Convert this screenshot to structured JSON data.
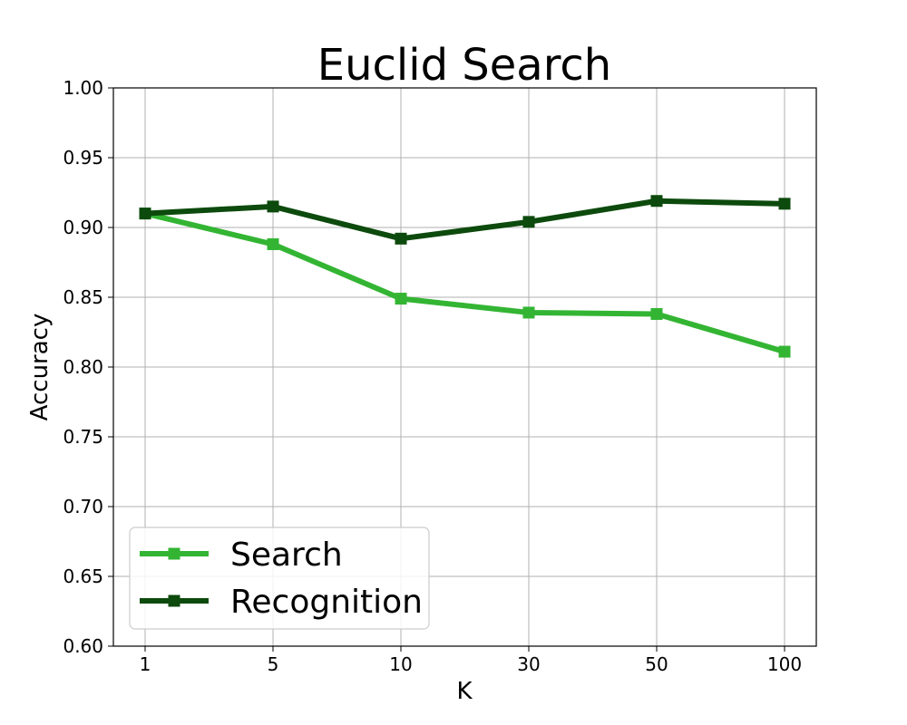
{
  "chart_data": {
    "type": "line",
    "title": "Euclid Search",
    "xlabel": "K",
    "ylabel": "Accuracy",
    "categories": [
      "1",
      "5",
      "10",
      "30",
      "50",
      "100"
    ],
    "ylim": [
      0.6,
      1.0
    ],
    "yticks": [
      "0.60",
      "0.65",
      "0.70",
      "0.75",
      "0.80",
      "0.85",
      "0.90",
      "0.95",
      "1.00"
    ],
    "grid": true,
    "legend_position": "lower-left",
    "series": [
      {
        "name": "Search",
        "color": "#33b533",
        "marker": "square",
        "values": [
          0.91,
          0.888,
          0.849,
          0.839,
          0.838,
          0.811
        ]
      },
      {
        "name": "Recognition",
        "color": "#0d4a0d",
        "marker": "square",
        "values": [
          0.91,
          0.915,
          0.892,
          0.904,
          0.919,
          0.917
        ]
      }
    ]
  }
}
